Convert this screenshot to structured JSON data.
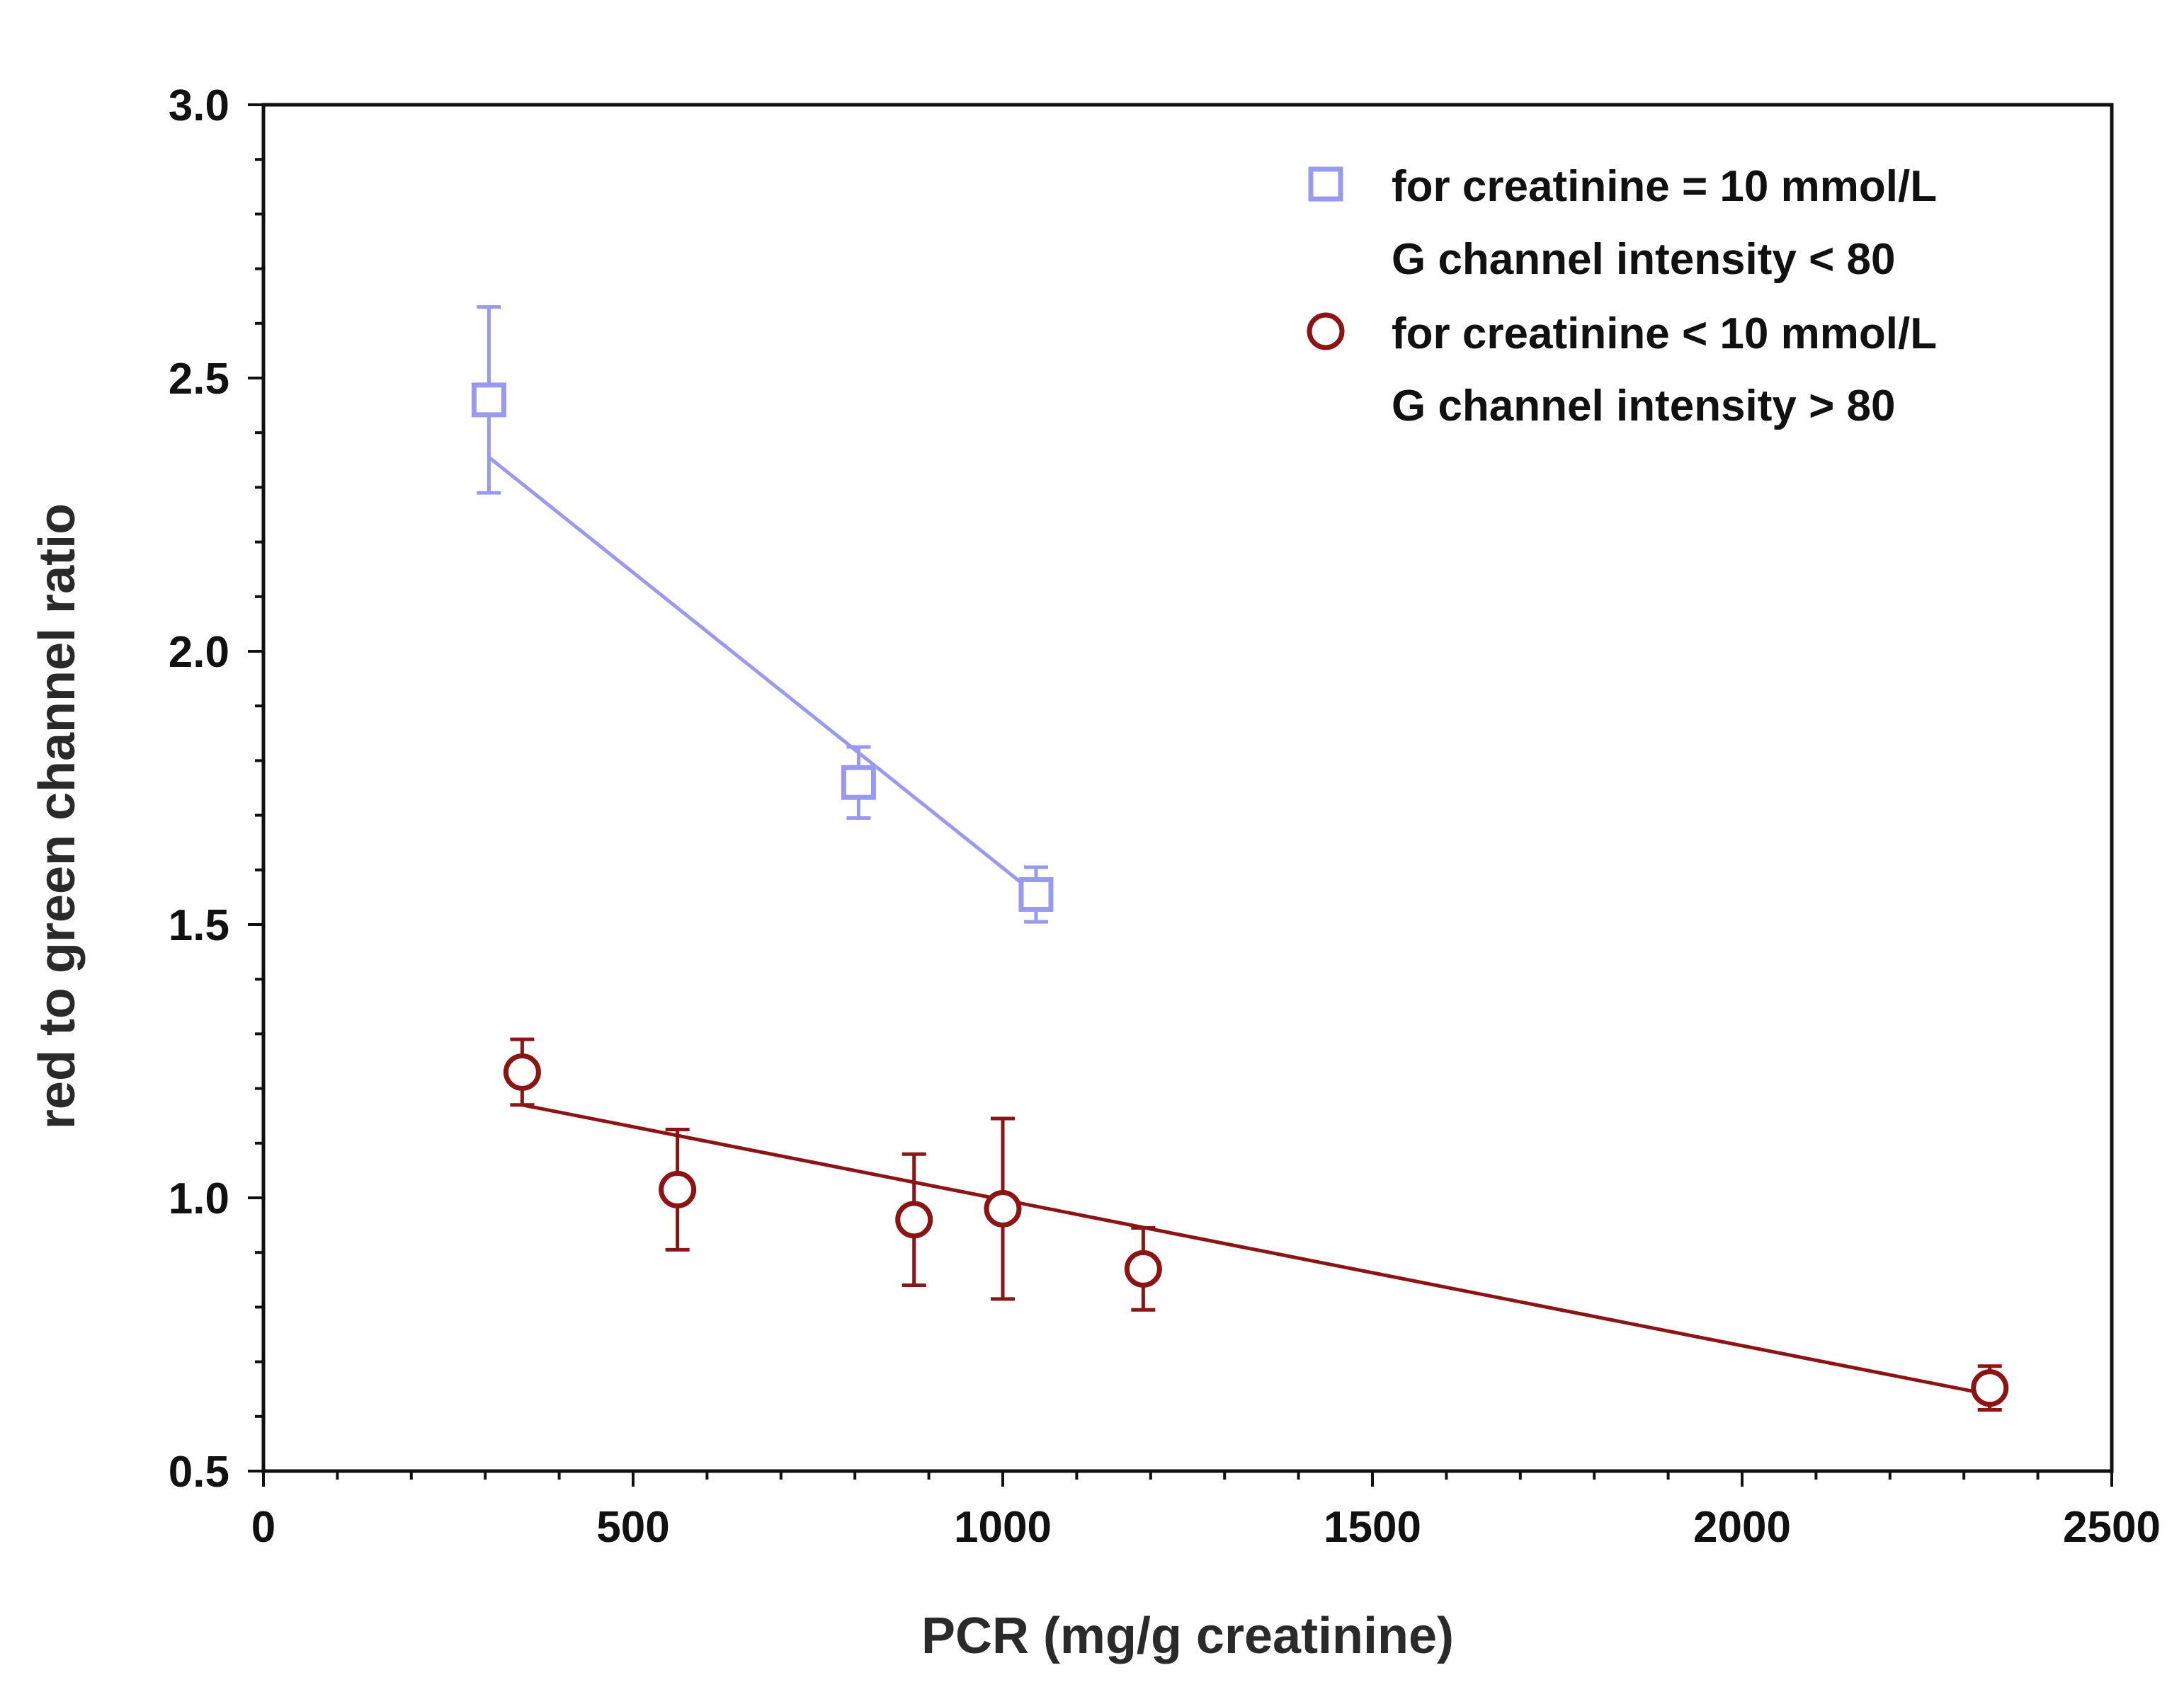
{
  "chart_data": {
    "type": "scatter",
    "title": "",
    "xlabel": "PCR (mg/g creatinine)",
    "ylabel": "red to green channel ratio",
    "xlim": [
      0,
      2500
    ],
    "ylim": [
      0.5,
      3.0
    ],
    "x_ticks": [
      "0",
      "500",
      "1000",
      "1500",
      "2000",
      "2500"
    ],
    "y_ticks": [
      "0.5",
      "1.0",
      "1.5",
      "2.0",
      "2.5",
      "3.0"
    ],
    "x_tick_values": [
      0,
      500,
      1000,
      1500,
      2000,
      2500
    ],
    "y_tick_values": [
      0.5,
      1.0,
      1.5,
      2.0,
      2.5,
      3.0
    ],
    "grid": false,
    "legend_position": "top-right",
    "series": [
      {
        "name": "for creatinine = 10 mmol/L",
        "name_line2": "G channel intensity < 80",
        "marker": "square",
        "color": "#9999ee",
        "points": [
          {
            "x": 305,
            "y": 2.46,
            "err": 0.17
          },
          {
            "x": 805,
            "y": 1.76,
            "err": 0.065
          },
          {
            "x": 1045,
            "y": 1.555,
            "err": 0.05
          }
        ],
        "fit": [
          [
            305,
            2.355
          ],
          [
            1045,
            1.555
          ]
        ]
      },
      {
        "name": "for creatinine < 10 mmol/L",
        "name_line2": "G channel intensity > 80",
        "marker": "circle",
        "color": "#8b1414",
        "points": [
          {
            "x": 350,
            "y": 1.23,
            "err": 0.06
          },
          {
            "x": 560,
            "y": 1.015,
            "err": 0.11
          },
          {
            "x": 880,
            "y": 0.96,
            "err": 0.12
          },
          {
            "x": 1000,
            "y": 0.98,
            "err": 0.165
          },
          {
            "x": 1190,
            "y": 0.87,
            "err": 0.075
          },
          {
            "x": 2335,
            "y": 0.652,
            "err": 0.04
          }
        ],
        "fit": [
          [
            350,
            1.17
          ],
          [
            2335,
            0.64
          ]
        ]
      }
    ]
  }
}
